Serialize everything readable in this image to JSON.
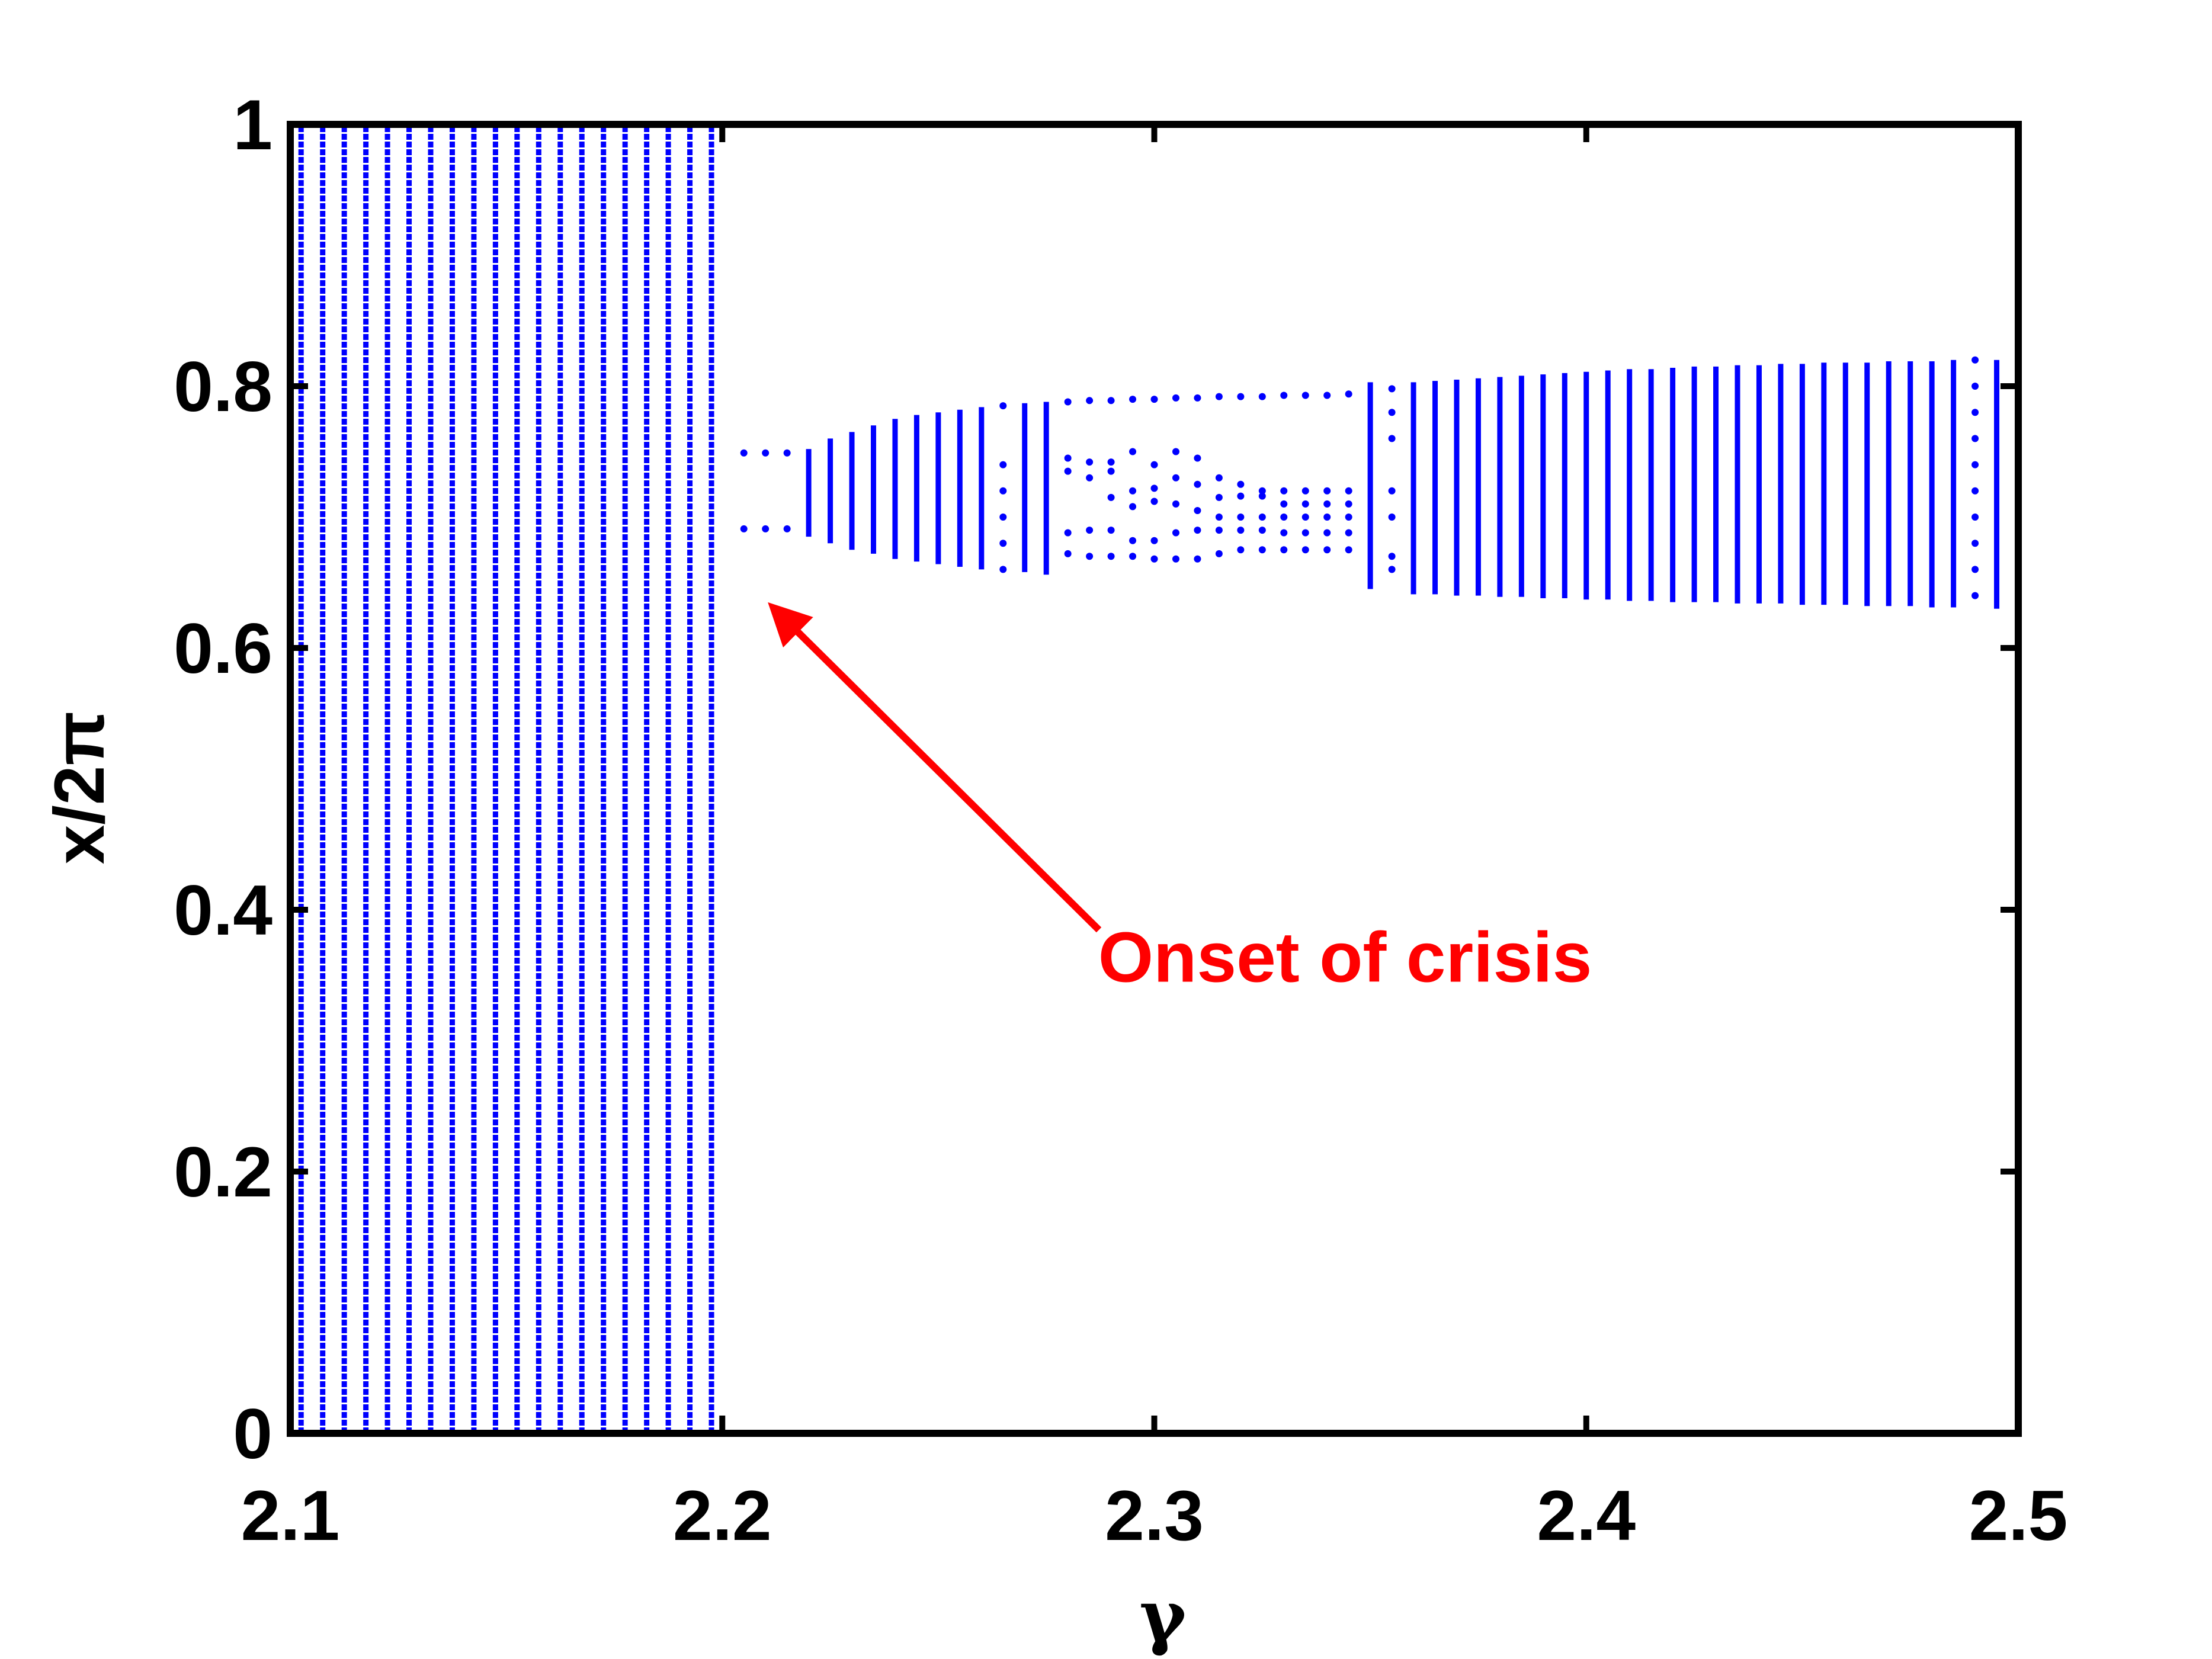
{
  "chart_data": {
    "type": "scatter",
    "title": "",
    "xlabel": "γ",
    "ylabel": "x/2π",
    "xlim": [
      2.1,
      2.5
    ],
    "ylim": [
      0,
      1
    ],
    "x_ticks": [
      "2.1",
      "2.2",
      "2.3",
      "2.4",
      "2.5"
    ],
    "y_ticks": [
      "0",
      "0.2",
      "0.4",
      "0.6",
      "0.8",
      "1"
    ],
    "grid": false,
    "legend": "none",
    "marker_color": "#0000ff",
    "series": [
      {
        "description": "bifurcation diagram: for each gamma, range of x/2π values visited",
        "chaotic_full_band": {
          "gamma_start": 2.1025,
          "gamma_end": 2.2,
          "gamma_step": 0.005,
          "y_range": [
            0,
            1
          ]
        },
        "points": [
          {
            "gamma": 2.205,
            "y": [
              0.749,
              0.691
            ]
          },
          {
            "gamma": 2.21,
            "y": [
              0.749,
              0.691
            ]
          },
          {
            "gamma": 2.215,
            "y": [
              0.749,
              0.691
            ]
          },
          {
            "gamma": 2.22,
            "y_range": [
              0.685,
              0.752
            ]
          },
          {
            "gamma": 2.225,
            "y_range": [
              0.68,
              0.76
            ]
          },
          {
            "gamma": 2.23,
            "y_range": [
              0.675,
              0.765
            ]
          },
          {
            "gamma": 2.235,
            "y_range": [
              0.672,
              0.77
            ]
          },
          {
            "gamma": 2.24,
            "y_range": [
              0.668,
              0.775
            ]
          },
          {
            "gamma": 2.245,
            "y_range": [
              0.666,
              0.778
            ]
          },
          {
            "gamma": 2.25,
            "y_range": [
              0.664,
              0.78
            ]
          },
          {
            "gamma": 2.255,
            "y_range": [
              0.662,
              0.782
            ]
          },
          {
            "gamma": 2.26,
            "y_range": [
              0.66,
              0.784
            ]
          },
          {
            "gamma": 2.265,
            "y": [
              0.785,
              0.74,
              0.72,
              0.7,
              0.68,
              0.66
            ]
          },
          {
            "gamma": 2.27,
            "y_range": [
              0.658,
              0.787
            ]
          },
          {
            "gamma": 2.275,
            "y_range": [
              0.656,
              0.788
            ]
          },
          {
            "gamma": 2.28,
            "y": [
              0.788,
              0.745,
              0.735,
              0.688,
              0.672
            ]
          },
          {
            "gamma": 2.285,
            "y": [
              0.789,
              0.742,
              0.73,
              0.69,
              0.67
            ]
          },
          {
            "gamma": 2.29,
            "y": [
              0.789,
              0.742,
              0.735,
              0.715,
              0.69,
              0.67
            ]
          },
          {
            "gamma": 2.295,
            "y": [
              0.79,
              0.75,
              0.72,
              0.708,
              0.682,
              0.67
            ]
          },
          {
            "gamma": 2.3,
            "y": [
              0.79,
              0.74,
              0.722,
              0.712,
              0.682,
              0.668
            ]
          },
          {
            "gamma": 2.305,
            "y": [
              0.791,
              0.75,
              0.73,
              0.71,
              0.688,
              0.668
            ]
          },
          {
            "gamma": 2.31,
            "y": [
              0.791,
              0.745,
              0.725,
              0.705,
              0.69,
              0.668
            ]
          },
          {
            "gamma": 2.315,
            "y": [
              0.792,
              0.73,
              0.715,
              0.7,
              0.69,
              0.672
            ]
          },
          {
            "gamma": 2.32,
            "y": [
              0.792,
              0.725,
              0.716,
              0.7,
              0.69,
              0.675
            ]
          },
          {
            "gamma": 2.325,
            "y": [
              0.792,
              0.72,
              0.716,
              0.7,
              0.69,
              0.675
            ]
          },
          {
            "gamma": 2.33,
            "y": [
              0.793,
              0.72,
              0.71,
              0.7,
              0.688,
              0.675
            ]
          },
          {
            "gamma": 2.335,
            "y": [
              0.793,
              0.72,
              0.71,
              0.7,
              0.688,
              0.675
            ]
          },
          {
            "gamma": 2.34,
            "y": [
              0.793,
              0.72,
              0.71,
              0.7,
              0.688,
              0.675
            ]
          },
          {
            "gamma": 2.345,
            "y": [
              0.794,
              0.72,
              0.71,
              0.7,
              0.688,
              0.675
            ]
          },
          {
            "gamma": 2.35,
            "y_range": [
              0.645,
              0.803
            ]
          },
          {
            "gamma": 2.355,
            "y": [
              0.798,
              0.78,
              0.76,
              0.72,
              0.7,
              0.67,
              0.66
            ]
          },
          {
            "gamma": 2.36,
            "y_range": [
              0.641,
              0.803
            ]
          },
          {
            "gamma": 2.365,
            "y_range": [
              0.641,
              0.804
            ]
          },
          {
            "gamma": 2.37,
            "y_range": [
              0.64,
              0.805
            ]
          },
          {
            "gamma": 2.375,
            "y_range": [
              0.64,
              0.806
            ]
          },
          {
            "gamma": 2.38,
            "y_range": [
              0.639,
              0.807
            ]
          },
          {
            "gamma": 2.385,
            "y_range": [
              0.639,
              0.808
            ]
          },
          {
            "gamma": 2.39,
            "y_range": [
              0.638,
              0.809
            ]
          },
          {
            "gamma": 2.395,
            "y_range": [
              0.638,
              0.81
            ]
          },
          {
            "gamma": 2.4,
            "y_range": [
              0.637,
              0.811
            ]
          },
          {
            "gamma": 2.405,
            "y_range": [
              0.637,
              0.812
            ]
          },
          {
            "gamma": 2.41,
            "y_range": [
              0.636,
              0.813
            ]
          },
          {
            "gamma": 2.415,
            "y_range": [
              0.636,
              0.813
            ]
          },
          {
            "gamma": 2.42,
            "y_range": [
              0.635,
              0.814
            ]
          },
          {
            "gamma": 2.425,
            "y_range": [
              0.635,
              0.815
            ]
          },
          {
            "gamma": 2.43,
            "y_range": [
              0.635,
              0.815
            ]
          },
          {
            "gamma": 2.435,
            "y_range": [
              0.634,
              0.816
            ]
          },
          {
            "gamma": 2.44,
            "y_range": [
              0.634,
              0.816
            ]
          },
          {
            "gamma": 2.445,
            "y_range": [
              0.634,
              0.817
            ]
          },
          {
            "gamma": 2.45,
            "y_range": [
              0.633,
              0.817
            ]
          },
          {
            "gamma": 2.455,
            "y_range": [
              0.633,
              0.818
            ]
          },
          {
            "gamma": 2.46,
            "y_range": [
              0.633,
              0.818
            ]
          },
          {
            "gamma": 2.465,
            "y_range": [
              0.632,
              0.818
            ]
          },
          {
            "gamma": 2.47,
            "y_range": [
              0.632,
              0.819
            ]
          },
          {
            "gamma": 2.475,
            "y_range": [
              0.632,
              0.819
            ]
          },
          {
            "gamma": 2.48,
            "y_range": [
              0.631,
              0.819
            ]
          },
          {
            "gamma": 2.485,
            "y_range": [
              0.631,
              0.82
            ]
          },
          {
            "gamma": 2.49,
            "y": [
              0.82,
              0.8,
              0.78,
              0.76,
              0.74,
              0.72,
              0.7,
              0.68,
              0.66,
              0.64
            ]
          },
          {
            "gamma": 2.495,
            "y_range": [
              0.63,
              0.82
            ]
          }
        ]
      }
    ],
    "annotations": [
      {
        "text": "Onset of crisis",
        "color": "#ff0000",
        "arrow_to": {
          "gamma": 2.2075,
          "y": 0.645
        },
        "text_at": {
          "gamma": 2.287,
          "y": 0.345
        }
      }
    ]
  }
}
